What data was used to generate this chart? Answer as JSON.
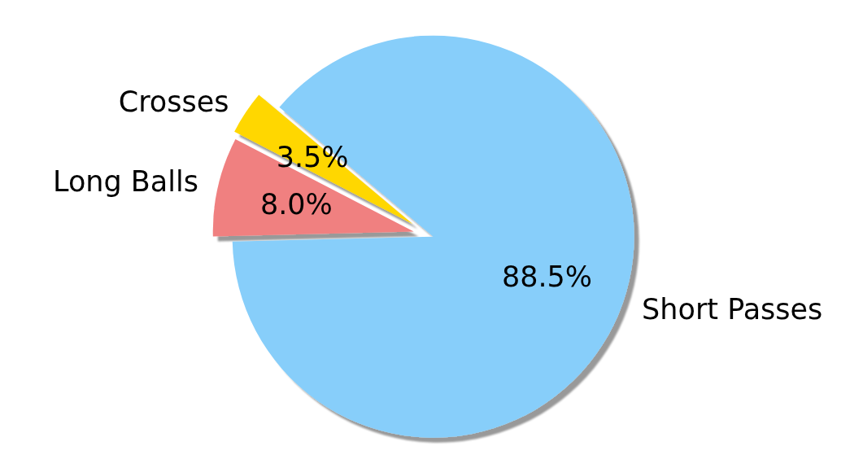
{
  "chart_data": {
    "type": "pie",
    "categories": [
      "Crosses",
      "Long Balls",
      "Short Passes"
    ],
    "values": [
      3.5,
      8.0,
      88.5
    ],
    "colors": [
      "#ffd700",
      "#f08080",
      "#87cefa"
    ],
    "value_labels": [
      "3.5%",
      "8.0%",
      "88.5%"
    ],
    "legend": false
  }
}
